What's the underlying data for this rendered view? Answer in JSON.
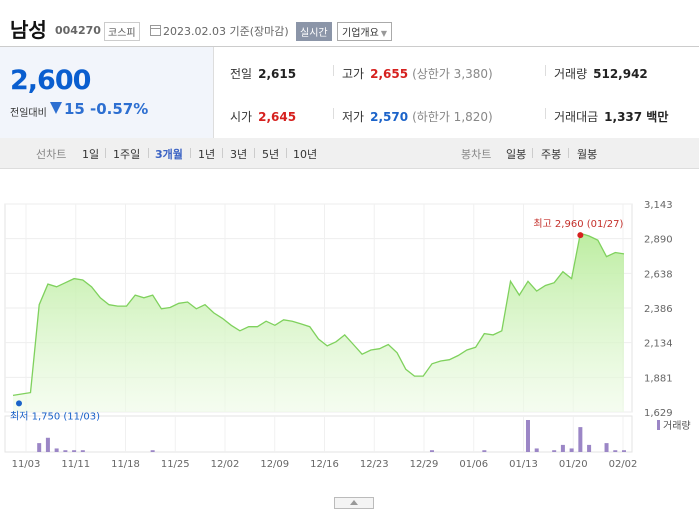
{
  "header": {
    "name": "남성",
    "code": "004270",
    "market": "코스피",
    "date": "2023.02.03 기준(장마감)",
    "realtime": "실시간",
    "company_overview": "기업개요"
  },
  "price": {
    "current": "2,600",
    "change_label": "전일대비",
    "change_value": "15",
    "change_pct": "-0.57%",
    "prev_close_label": "전일",
    "prev_close": "2,615",
    "high_label": "고가",
    "high": "2,655",
    "upper_limit": "(상한가 3,380)",
    "volume_label": "거래량",
    "volume": "512,942",
    "open_label": "시가",
    "open": "2,645",
    "low_label": "저가",
    "low": "2,570",
    "lower_limit": "(하한가 1,820)",
    "amount_label": "거래대금",
    "amount": "1,337 백만"
  },
  "tabs": {
    "line_label": "선차트",
    "line_periods": [
      "1일",
      "1주일",
      "3개월",
      "1년",
      "3년",
      "5년",
      "10년"
    ],
    "active": "3개월",
    "candle_label": "봉차트",
    "candle_periods": [
      "일봉",
      "주봉",
      "월봉"
    ]
  },
  "colors": {
    "up": "#d6211f",
    "down": "#1b63c9",
    "line": "#7fd15d",
    "volume": "#9b86c6"
  },
  "chart_data": {
    "type": "area",
    "y_ticks": [
      "3,143",
      "2,890",
      "2,638",
      "2,386",
      "2,134",
      "1,881",
      "1,629"
    ],
    "ylim": [
      1629,
      3143
    ],
    "x_ticks": [
      "11/03",
      "11/11",
      "11/18",
      "11/25",
      "12/02",
      "12/09",
      "12/16",
      "12/23",
      "12/29",
      "01/06",
      "01/13",
      "01/20",
      "02/02"
    ],
    "high_annotation": "최고 2,960 (01/27)",
    "low_annotation": "최저 1,750 (11/03)",
    "volume_label": "거래량",
    "price": [
      1750,
      1760,
      1770,
      2410,
      2560,
      2540,
      2570,
      2600,
      2590,
      2540,
      2460,
      2410,
      2400,
      2400,
      2480,
      2460,
      2480,
      2380,
      2390,
      2420,
      2430,
      2380,
      2410,
      2350,
      2310,
      2260,
      2220,
      2250,
      2250,
      2290,
      2260,
      2300,
      2290,
      2270,
      2250,
      2160,
      2110,
      2140,
      2190,
      2120,
      2050,
      2080,
      2090,
      2120,
      2060,
      1940,
      1890,
      1890,
      1980,
      2000,
      2010,
      2040,
      2080,
      2100,
      2200,
      2190,
      2220,
      2580,
      2480,
      2580,
      2510,
      2550,
      2570,
      2650,
      2600,
      2930,
      2910,
      2880,
      2760,
      2790,
      2780
    ],
    "volume": [
      0,
      0,
      0,
      5,
      8,
      2,
      1,
      1,
      1,
      0,
      0,
      0,
      0,
      0,
      0,
      0,
      1,
      0,
      0,
      0,
      0,
      0,
      0,
      0,
      0,
      0,
      0,
      0,
      0,
      0,
      0,
      0,
      0,
      0,
      0,
      0,
      0,
      0,
      0,
      0,
      0,
      0,
      0,
      0,
      0,
      0,
      0,
      0,
      1,
      0,
      0,
      0,
      0,
      0,
      1,
      0,
      0,
      0,
      0,
      18,
      2,
      0,
      1,
      4,
      2,
      14,
      4,
      0,
      5,
      1,
      1
    ]
  }
}
